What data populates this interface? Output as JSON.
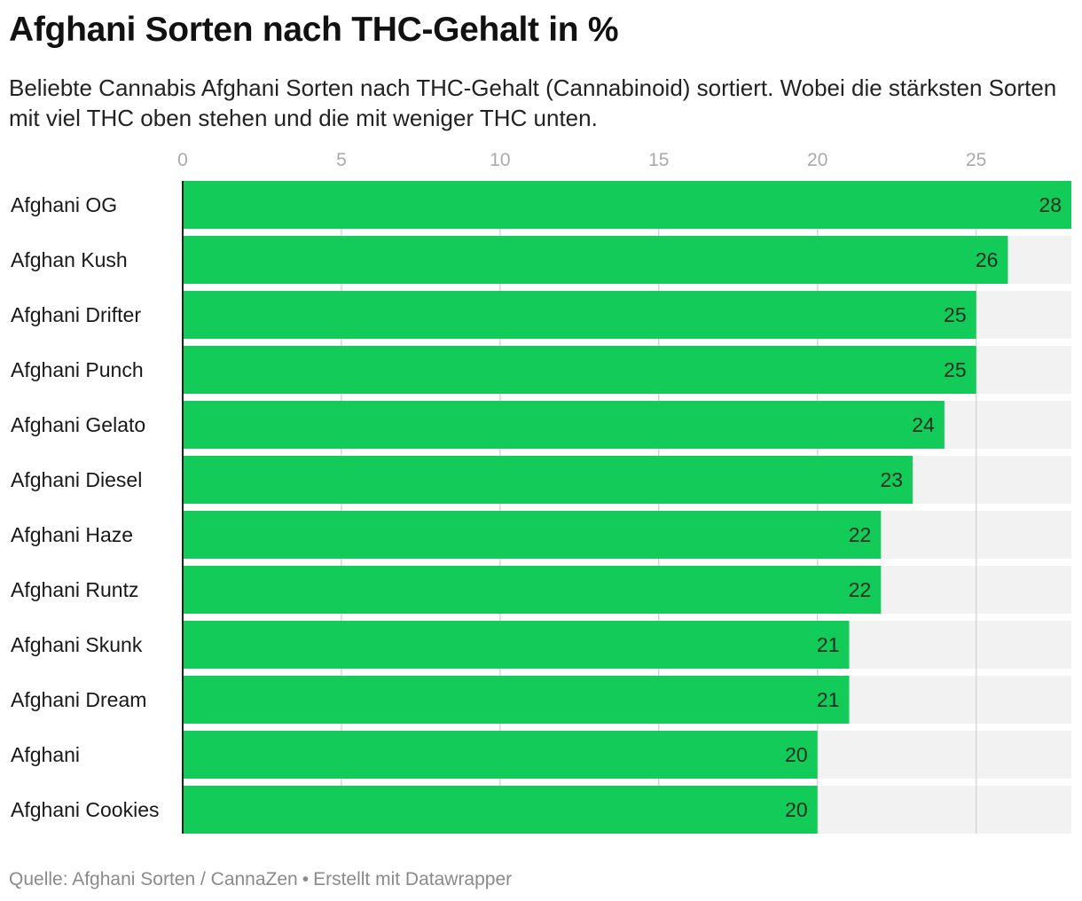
{
  "title": "Afghani Sorten nach THC-Gehalt in %",
  "subtitle": "Beliebte Cannabis Afghani Sorten nach THC-Gehalt (Cannabinoid) sortiert. Wobei die stärksten Sorten mit viel THC oben stehen und die mit weniger THC unten.",
  "footer": {
    "source": "Quelle: Afghani Sorten / CannaZen",
    "separator": "•",
    "credit": "Erstellt mit Datawrapper"
  },
  "colors": {
    "bar": "#13cb58",
    "track": "#f2f2f2",
    "grid": "#d6d6d6",
    "axis": "#222222",
    "tick_label": "#aaaaaa"
  },
  "chart_data": {
    "type": "bar",
    "orientation": "horizontal",
    "title": "Afghani Sorten nach THC-Gehalt in %",
    "xlabel": "",
    "ylabel": "",
    "xlim": [
      0,
      28
    ],
    "xticks": [
      0,
      5,
      10,
      15,
      20,
      25
    ],
    "grid": true,
    "categories": [
      "Afghani OG",
      "Afghan Kush",
      "Afghani Drifter",
      "Afghani Punch",
      "Afghani Gelato",
      "Afghani Diesel",
      "Afghani Haze",
      "Afghani Runtz",
      "Afghani Skunk",
      "Afghani Dream",
      "Afghani",
      "Afghani Cookies"
    ],
    "values": [
      28,
      26,
      25,
      25,
      24,
      23,
      22,
      22,
      21,
      21,
      20,
      20
    ]
  }
}
